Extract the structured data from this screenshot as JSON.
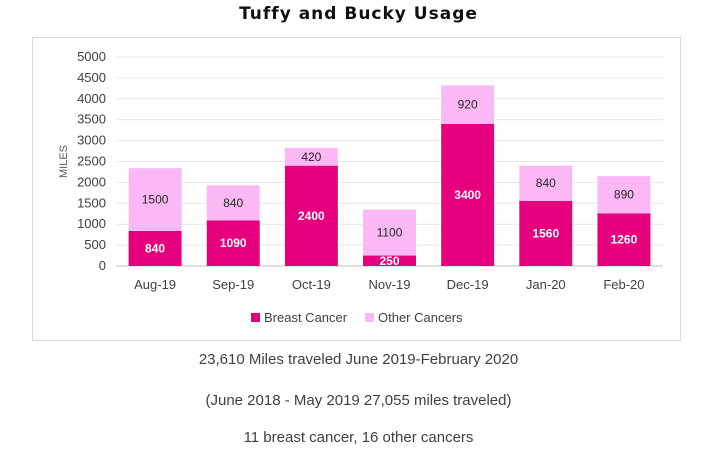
{
  "chart_data": {
    "type": "bar",
    "stacked": true,
    "title": "Tuffy and Bucky Usage",
    "ylabel": "MILES",
    "xlabel": "",
    "ylim": [
      0,
      5000
    ],
    "yticks": [
      0,
      500,
      1000,
      1500,
      2000,
      2500,
      3000,
      3500,
      4000,
      4500,
      5000
    ],
    "grid": true,
    "legend": "bottom",
    "categories": [
      "Aug-19",
      "Sep-19",
      "Oct-19",
      "Nov-19",
      "Dec-19",
      "Jan-20",
      "Feb-20"
    ],
    "series": [
      {
        "name": "Breast Cancer",
        "color": "#e6007e",
        "values": [
          840,
          1090,
          2400,
          250,
          3400,
          1560,
          1260
        ]
      },
      {
        "name": "Other Cancers",
        "color": "#fcb8f5",
        "values": [
          1500,
          840,
          420,
          1100,
          920,
          840,
          890
        ]
      }
    ]
  },
  "notes": {
    "line1": "23,610 Miles traveled June 2019-February 2020",
    "line2": "(June 2018 - May 2019 27,055 miles traveled)",
    "line3": "11 breast cancer, 16 other cancers"
  }
}
